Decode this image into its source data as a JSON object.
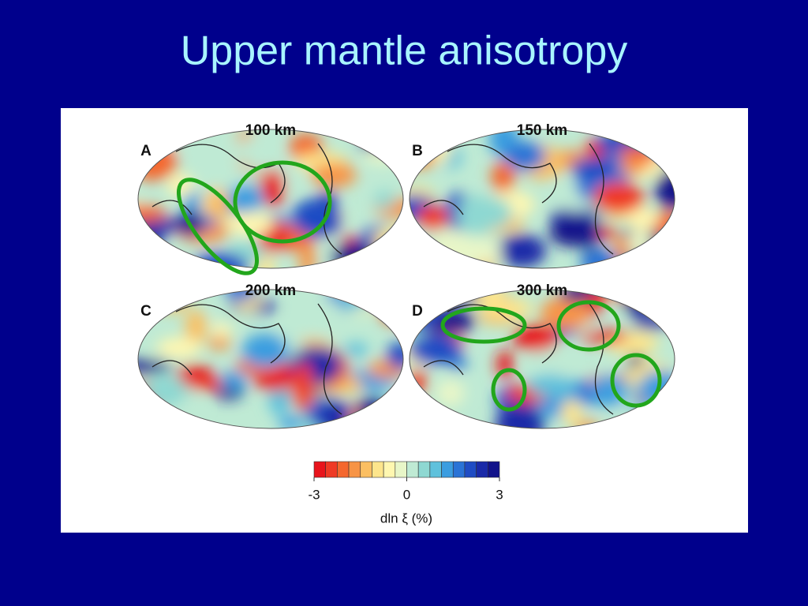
{
  "title": "Upper mantle anisotropy",
  "panels": [
    {
      "letter": "A",
      "depth": "100 km"
    },
    {
      "letter": "B",
      "depth": "150 km"
    },
    {
      "letter": "C",
      "depth": "200 km"
    },
    {
      "letter": "D",
      "depth": "300 km"
    }
  ],
  "colorbar": {
    "label": "dln ξ (%)",
    "range": [
      -3,
      3
    ],
    "ticks": [
      -3,
      0,
      3
    ],
    "colors": [
      "#e8141c",
      "#ef3a25",
      "#f4672e",
      "#f79446",
      "#fbbf62",
      "#fde58c",
      "#fff7b0",
      "#e8f6c8",
      "#bfead4",
      "#8ed8d2",
      "#5fc1dc",
      "#3b9de0",
      "#2a73d6",
      "#1f4cc4",
      "#1a2aa8",
      "#12138a"
    ]
  }
}
